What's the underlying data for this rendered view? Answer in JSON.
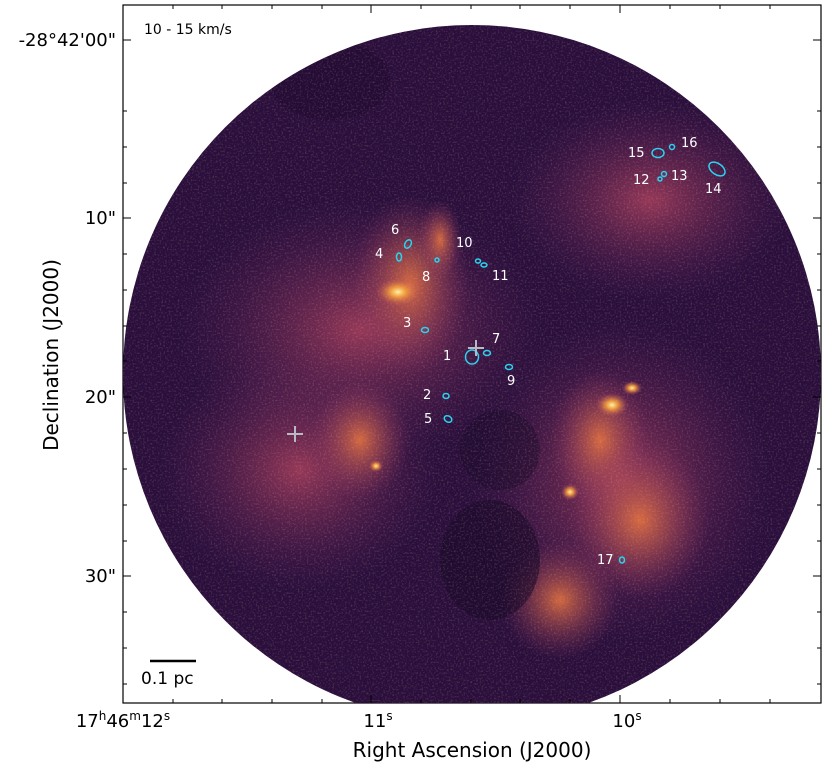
{
  "velocity_label": "10 - 15   km/s",
  "scale_bar_label": "0.1 pc",
  "x_axis": {
    "label": "Right Ascension (J2000)",
    "ticks": [
      {
        "main": "17",
        "sup1": "h",
        "mid": "46",
        "sup2": "m",
        "tail": "12",
        "sup3": "s"
      },
      {
        "main": "11",
        "sup3": "s"
      },
      {
        "main": "10",
        "sup3": "s"
      }
    ]
  },
  "y_axis": {
    "label": "Declination (J2000)",
    "ticks": [
      "-28°42'00\"",
      "10\"",
      "20\"",
      "30\""
    ]
  },
  "sources": [
    "1",
    "2",
    "3",
    "4",
    "5",
    "6",
    "7",
    "8",
    "9",
    "10",
    "11",
    "12",
    "13",
    "14",
    "15",
    "16",
    "17"
  ],
  "colors": {
    "background_dark": "#2a0f3d",
    "emission_mid": "#9a3a5e",
    "emission_bright": "#f7a33a",
    "ellipse": "#2ad4f0",
    "marker": "#b9b9c6"
  }
}
